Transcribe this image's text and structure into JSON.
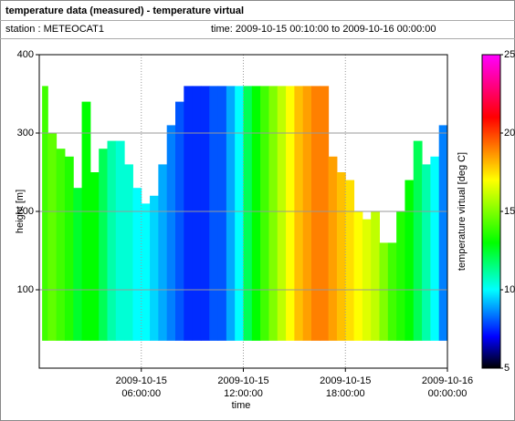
{
  "chart_data": {
    "type": "heatmap",
    "title": "temperature data (measured) - temperature virtual",
    "station": "station : METEOCAT1",
    "time_range": "time: 2009-10-15 00:10:00 to 2009-10-16 00:00:00",
    "xlabel": "time",
    "ylabel": "height [m]",
    "colorbar_label": "temperature virtual [deg C]",
    "xlim": [
      "2009-10-15 00:00:00",
      "2009-10-16 00:00:00"
    ],
    "xticks": [
      {
        "value": "2009-10-15 06:00:00",
        "label": [
          "2009-10-15",
          "06:00:00"
        ]
      },
      {
        "value": "2009-10-15 12:00:00",
        "label": [
          "2009-10-15",
          "12:00:00"
        ]
      },
      {
        "value": "2009-10-15 18:00:00",
        "label": [
          "2009-10-15",
          "18:00:00"
        ]
      },
      {
        "value": "2009-10-16 00:00:00",
        "label": [
          "2009-10-16",
          "00:00:00"
        ]
      }
    ],
    "ylim": [
      0,
      400
    ],
    "yticks": [
      100,
      200,
      300,
      400
    ],
    "clim": [
      5,
      25
    ],
    "cticks": [
      5,
      10,
      15,
      20,
      25
    ],
    "colormap": [
      [
        5,
        "#000000"
      ],
      [
        7,
        "#0000ff"
      ],
      [
        10,
        "#00ffff"
      ],
      [
        13,
        "#00ff00"
      ],
      [
        17,
        "#ffff00"
      ],
      [
        19,
        "#ff8000"
      ],
      [
        21,
        "#ff0000"
      ],
      [
        25,
        "#ff00ff"
      ]
    ],
    "grid": true,
    "y_min": 35,
    "x": [
      "2009-10-15 00:10:00",
      "2009-10-15 00:30:00",
      "2009-10-15 01:00:00",
      "2009-10-15 01:30:00",
      "2009-10-15 02:00:00",
      "2009-10-15 02:30:00",
      "2009-10-15 03:00:00",
      "2009-10-15 03:30:00",
      "2009-10-15 04:00:00",
      "2009-10-15 04:30:00",
      "2009-10-15 05:00:00",
      "2009-10-15 05:30:00",
      "2009-10-15 06:00:00",
      "2009-10-15 06:30:00",
      "2009-10-15 07:00:00",
      "2009-10-15 07:30:00",
      "2009-10-15 08:00:00",
      "2009-10-15 08:30:00",
      "2009-10-15 09:00:00",
      "2009-10-15 09:30:00",
      "2009-10-15 10:00:00",
      "2009-10-15 10:30:00",
      "2009-10-15 11:00:00",
      "2009-10-15 11:30:00",
      "2009-10-15 12:00:00",
      "2009-10-15 12:30:00",
      "2009-10-15 13:00:00",
      "2009-10-15 13:30:00",
      "2009-10-15 14:00:00",
      "2009-10-15 14:30:00",
      "2009-10-15 15:00:00",
      "2009-10-15 15:30:00",
      "2009-10-15 16:00:00",
      "2009-10-15 16:30:00",
      "2009-10-15 17:00:00",
      "2009-10-15 17:30:00",
      "2009-10-15 18:00:00",
      "2009-10-15 18:30:00",
      "2009-10-15 19:00:00",
      "2009-10-15 19:30:00",
      "2009-10-15 20:00:00",
      "2009-10-15 20:30:00",
      "2009-10-15 21:00:00",
      "2009-10-15 21:30:00",
      "2009-10-15 22:00:00",
      "2009-10-15 22:30:00",
      "2009-10-15 23:00:00",
      "2009-10-15 23:30:00"
    ],
    "tops": [
      360,
      300,
      280,
      270,
      230,
      340,
      250,
      280,
      290,
      290,
      260,
      230,
      210,
      220,
      260,
      310,
      340,
      360,
      360,
      360,
      360,
      360,
      360,
      360,
      360,
      360,
      360,
      360,
      360,
      360,
      360,
      360,
      360,
      360,
      270,
      250,
      240,
      200,
      190,
      200,
      160,
      160,
      200,
      240,
      290,
      260,
      270,
      310
    ],
    "values": [
      14,
      14.5,
      14,
      13.5,
      12.5,
      13,
      13,
      12,
      11,
      10.5,
      10.5,
      10,
      10,
      9.5,
      9,
      8.5,
      8,
      7.5,
      7.5,
      7.5,
      8,
      8,
      9,
      10,
      12,
      13,
      14,
      15,
      16,
      17,
      18,
      18.5,
      19,
      19,
      18.5,
      18,
      17.5,
      17,
      16.5,
      16,
      15,
      14,
      13.5,
      13,
      12,
      11,
      10,
      8.5
    ]
  }
}
